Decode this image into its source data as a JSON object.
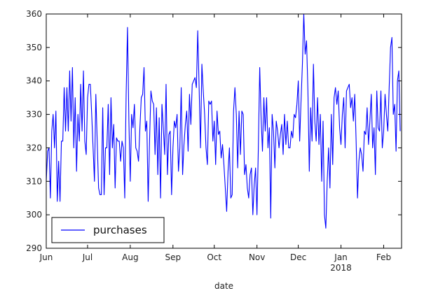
{
  "chart_data": {
    "type": "line",
    "title": "",
    "xlabel": "date",
    "ylabel": "",
    "ylim": [
      290,
      360
    ],
    "xlim": [
      "2017-06-01",
      "2018-02-14"
    ],
    "grid": false,
    "legend": {
      "position": "lower-left",
      "entries": [
        "purchases"
      ]
    },
    "y_ticks": [
      290,
      300,
      310,
      320,
      330,
      340,
      350,
      360
    ],
    "x_ticks": [
      {
        "date": "2017-06-01",
        "label": "Jun"
      },
      {
        "date": "2017-07-01",
        "label": "Jul"
      },
      {
        "date": "2017-08-01",
        "label": "Aug"
      },
      {
        "date": "2017-09-01",
        "label": "Sep"
      },
      {
        "date": "2017-10-01",
        "label": "Oct"
      },
      {
        "date": "2017-11-01",
        "label": "Nov"
      },
      {
        "date": "2017-12-01",
        "label": "Dec"
      },
      {
        "date": "2018-01-01",
        "label": "Jan",
        "sublabel": "2018"
      },
      {
        "date": "2018-02-01",
        "label": "Feb"
      }
    ],
    "color": "#0000ff",
    "series": [
      {
        "name": "purchases",
        "start_date": "2017-06-01",
        "frequency": "daily",
        "values": [
          310,
          319,
          320,
          305,
          325,
          330,
          320,
          331,
          304,
          316,
          304,
          322,
          322,
          338,
          325,
          338,
          325,
          343,
          328,
          344,
          320,
          335,
          313,
          330,
          322,
          339,
          325,
          343,
          322,
          318,
          335,
          339,
          339,
          330,
          320,
          310,
          336,
          322,
          308,
          306,
          306,
          332,
          306,
          320,
          320,
          333,
          312,
          335,
          320,
          327,
          308,
          323,
          322,
          322,
          316,
          322,
          320,
          305,
          336,
          356,
          328,
          310,
          330,
          326,
          333,
          320,
          319,
          316,
          326,
          335,
          336,
          344,
          325,
          328,
          304,
          322,
          337,
          334,
          333,
          318,
          332,
          312,
          329,
          305,
          333,
          326,
          318,
          339,
          312,
          324,
          325,
          306,
          320,
          328,
          326,
          330,
          313,
          320,
          338,
          312,
          321,
          327,
          331,
          319,
          336,
          327,
          339,
          340,
          341,
          338,
          355,
          338,
          320,
          345,
          337,
          330,
          320,
          315,
          334,
          333,
          334,
          322,
          328,
          315,
          331,
          324,
          325,
          317,
          321,
          315,
          308,
          301,
          313,
          320,
          305,
          306,
          331,
          338,
          330,
          314,
          331,
          318,
          331,
          330,
          312,
          315,
          308,
          305,
          312,
          314,
          300,
          309,
          314,
          300,
          320,
          344,
          329,
          319,
          335,
          325,
          335,
          320,
          326,
          299,
          330,
          325,
          314,
          328,
          325,
          320,
          324,
          327,
          318,
          330,
          321,
          328,
          320,
          320,
          325,
          323,
          330,
          329,
          333,
          340,
          322,
          334,
          345,
          360,
          348,
          352,
          337,
          313,
          332,
          322,
          345,
          328,
          322,
          335,
          321,
          330,
          310,
          328,
          300,
          296,
          310,
          320,
          308,
          330,
          315,
          335,
          338,
          333,
          337,
          326,
          321,
          330,
          335,
          320,
          337,
          338,
          339,
          332,
          335,
          328,
          336,
          322,
          305,
          316,
          320,
          318,
          313,
          325,
          324,
          332,
          321,
          328,
          336,
          320,
          326,
          312,
          337,
          326,
          325,
          337,
          320,
          325,
          336,
          330,
          325,
          338,
          350,
          353,
          330,
          333,
          319,
          340,
          343,
          325
        ]
      }
    ]
  }
}
